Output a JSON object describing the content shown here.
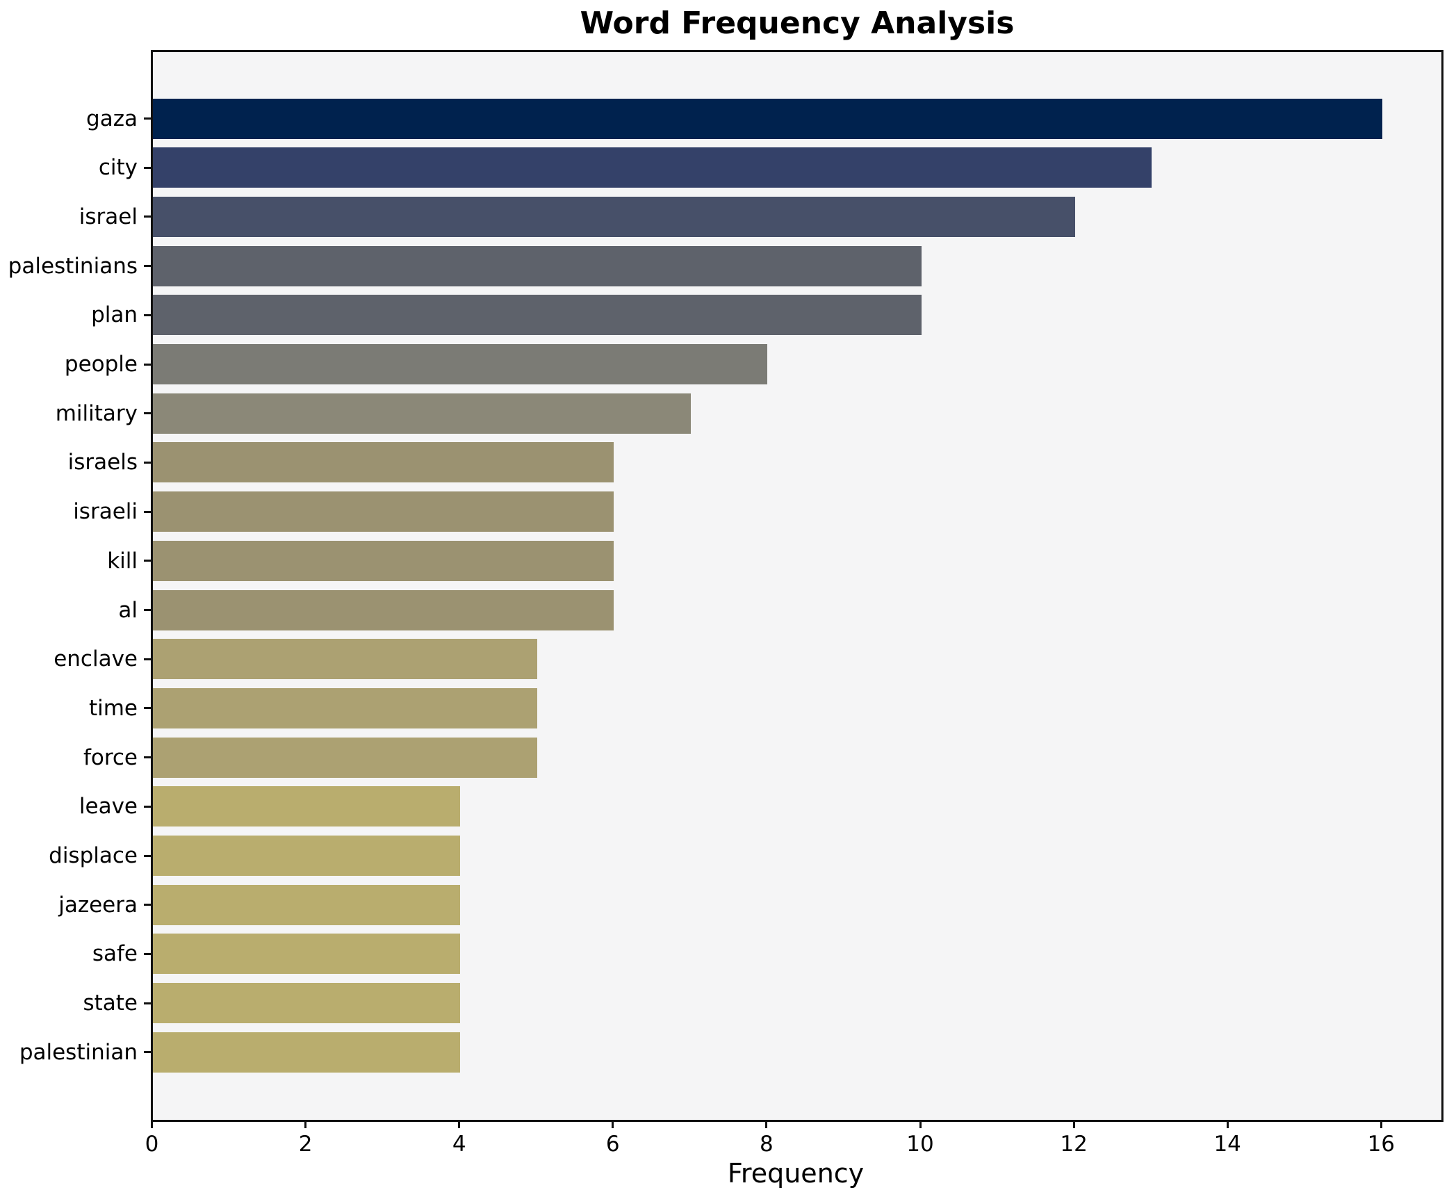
{
  "title": "Word Frequency Analysis",
  "chart_data": {
    "type": "bar",
    "orientation": "horizontal",
    "title": "Word Frequency Analysis",
    "xlabel": "Frequency",
    "ylabel": "",
    "categories": [
      "gaza",
      "city",
      "israel",
      "palestinians",
      "plan",
      "people",
      "military",
      "israels",
      "israeli",
      "kill",
      "al",
      "enclave",
      "time",
      "force",
      "leave",
      "displace",
      "jazeera",
      "safe",
      "state",
      "palestinian"
    ],
    "values": [
      16,
      13,
      12,
      10,
      10,
      8,
      7,
      6,
      6,
      6,
      6,
      5,
      5,
      5,
      4,
      4,
      4,
      4,
      4,
      4
    ],
    "bar_colors": [
      "#00224e",
      "#344169",
      "#475069",
      "#5e626b",
      "#5e626b",
      "#7b7b75",
      "#8b8878",
      "#9b9271",
      "#9b9271",
      "#9b9271",
      "#9b9271",
      "#aca172",
      "#aca172",
      "#aca172",
      "#b9ad6e",
      "#b9ad6e",
      "#b9ad6e",
      "#b9ad6e",
      "#b9ad6e",
      "#b9ad6e"
    ],
    "xticks": [
      0,
      2,
      4,
      6,
      8,
      10,
      12,
      14,
      16
    ],
    "xlim": [
      0,
      16.77
    ],
    "grid": false,
    "legend": "none",
    "plot_bg": "#f5f5f6",
    "page_bg": "#ffffff",
    "spine_color": "#111111",
    "text_color": "#000000"
  }
}
